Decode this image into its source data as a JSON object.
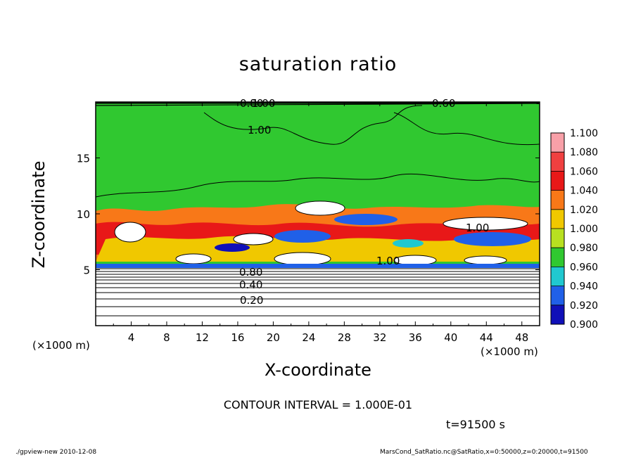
{
  "chart_data": {
    "type": "heatmap",
    "title": "saturation ratio",
    "xlabel": "X-coordinate",
    "ylabel": "Z-coordinate",
    "x_unit": "(×1000 m)",
    "x_unit_right": "(×1000 m)",
    "xlim": [
      0,
      50
    ],
    "ylim": [
      0,
      20
    ],
    "x_ticks": [
      4,
      8,
      12,
      16,
      20,
      24,
      28,
      32,
      36,
      40,
      44,
      48
    ],
    "y_ticks": [
      5,
      10,
      15
    ],
    "colorbar": {
      "levels": [
        "1.100",
        "1.080",
        "1.060",
        "1.040",
        "1.020",
        "1.000",
        "0.980",
        "0.960",
        "0.940",
        "0.920",
        "0.900"
      ],
      "colors": [
        "#f8a0a8",
        "#f04040",
        "#e81818",
        "#f87818",
        "#f0c800",
        "#b8e020",
        "#30c830",
        "#20c8d0",
        "#2060e8",
        "#1010b8",
        "#7020b8"
      ]
    },
    "contour_labels": [
      "0.80",
      "0.60",
      "1.00",
      "1.00",
      "0.80",
      "0.40",
      "0.20",
      "1.00",
      "1.00"
    ],
    "contour_interval": "CONTOUR INTERVAL = 1.000E-01",
    "time": "t=91500 s"
  },
  "footer": {
    "left": "./gpview-new   2010-12-08",
    "right": "MarsCond_SatRatio.nc@SatRatio,x=0:50000,z=0:20000,t=91500"
  }
}
